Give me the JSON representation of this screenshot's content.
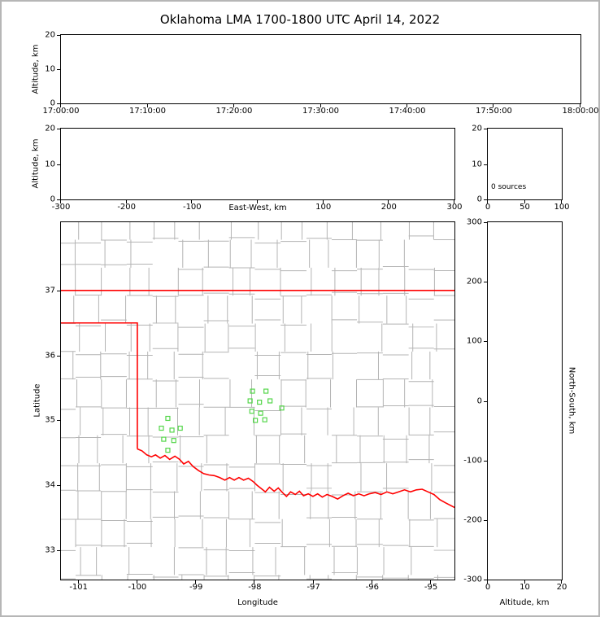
{
  "title": "Oklahoma LMA 1700-1800 UTC April 14, 2022",
  "colors": {
    "county_line": "#b4b4b4",
    "state_border": "#ff0000",
    "station_marker": "#54d64a",
    "axis": "#000000"
  },
  "panels": {
    "time_height": {
      "ylabel": "Altitude, km",
      "yticks": [
        [
          "0",
          0
        ],
        [
          "10",
          0.5
        ],
        [
          "20",
          1
        ]
      ],
      "xticks": [
        [
          "17:00:00",
          0
        ],
        [
          "17:10:00",
          0.1667
        ],
        [
          "17:20:00",
          0.3333
        ],
        [
          "17:30:00",
          0.5
        ],
        [
          "17:40:00",
          0.6667
        ],
        [
          "17:50:00",
          0.8333
        ],
        [
          "18:00:00",
          1
        ]
      ]
    },
    "ew_height": {
      "ylabel": "Altitude, km",
      "xlabel": "East-West, km",
      "yticks": [
        [
          "0",
          0
        ],
        [
          "10",
          0.5
        ],
        [
          "20",
          1
        ]
      ],
      "xticks": [
        [
          "-300",
          0
        ],
        [
          "-200",
          0.1667
        ],
        [
          "-100",
          0.3333
        ],
        [
          "",
          0.5
        ],
        [
          "100",
          0.6667
        ],
        [
          "200",
          0.8333
        ],
        [
          "300",
          1
        ]
      ]
    },
    "alt_hist": {
      "annotation": "0 sources",
      "yticks": [
        [
          "0",
          0
        ],
        [
          "10",
          0.5
        ],
        [
          "20",
          1
        ]
      ],
      "xticks": [
        [
          "0",
          0
        ],
        [
          "50",
          0.5
        ],
        [
          "100",
          1
        ]
      ]
    },
    "map": {
      "ylabel": "Latitude",
      "xlabel": "Longitude",
      "yticks": [
        [
          "33",
          0.0818
        ],
        [
          "34",
          0.2636
        ],
        [
          "35",
          0.4455
        ],
        [
          "36",
          0.6273
        ],
        [
          "37",
          0.8091
        ]
      ],
      "xticks": [
        [
          "-101",
          0.0448
        ],
        [
          "-100",
          0.194
        ],
        [
          "-99",
          0.3433
        ],
        [
          "-98",
          0.4925
        ],
        [
          "-97",
          0.6418
        ],
        [
          "-96",
          0.791
        ],
        [
          "-95",
          0.9403
        ]
      ]
    },
    "ns_height": {
      "ylabel": "North-South, km",
      "xlabel": "Altitude, km",
      "yticks": [
        [
          "-300",
          0
        ],
        [
          "-200",
          0.1667
        ],
        [
          "-100",
          0.3333
        ],
        [
          "0",
          0.5
        ],
        [
          "100",
          0.6667
        ],
        [
          "200",
          0.8333
        ],
        [
          "300",
          1
        ]
      ],
      "xticks": [
        [
          "0",
          0
        ],
        [
          "10",
          0.5
        ],
        [
          "20",
          1
        ]
      ]
    }
  },
  "chart_data": {
    "type": "scatter",
    "title": "Oklahoma LMA 1700-1800 UTC April 14, 2022",
    "source_count": 0,
    "panels": {
      "time_height": {
        "xlim": [
          "17:00:00",
          "18:00:00"
        ],
        "ylim": [
          0,
          20
        ],
        "xlabel": "",
        "ylabel": "Altitude, km",
        "points": []
      },
      "ew_height": {
        "xlim": [
          -300,
          300
        ],
        "ylim": [
          0,
          20
        ],
        "xlabel": "East-West, km",
        "ylabel": "Altitude, km",
        "points": []
      },
      "alt_histogram": {
        "xlim": [
          0,
          100
        ],
        "ylim": [
          0,
          20
        ],
        "annotation": "0 sources",
        "counts": []
      },
      "ns_height": {
        "xlim": [
          0,
          20
        ],
        "ylim": [
          -300,
          300
        ],
        "xlabel": "Altitude, km",
        "ylabel": "North-South, km",
        "points": []
      }
    },
    "map": {
      "lon_range": [
        -101.3,
        -94.6
      ],
      "lat_range": [
        32.55,
        38.05
      ],
      "xlabel": "Longitude",
      "ylabel": "Latitude",
      "stations_lonlat": [
        [
          -98.04,
          35.45
        ],
        [
          -97.81,
          35.45
        ],
        [
          -98.08,
          35.3
        ],
        [
          -97.92,
          35.28
        ],
        [
          -97.74,
          35.3
        ],
        [
          -98.05,
          35.14
        ],
        [
          -97.9,
          35.11
        ],
        [
          -97.54,
          35.19
        ],
        [
          -97.99,
          35.0
        ],
        [
          -97.83,
          35.01
        ],
        [
          -99.48,
          35.03
        ],
        [
          -99.59,
          34.88
        ],
        [
          -99.41,
          34.85
        ],
        [
          -99.27,
          34.88
        ],
        [
          -99.55,
          34.71
        ],
        [
          -99.38,
          34.69
        ],
        [
          -99.48,
          34.54
        ]
      ],
      "state_border": {
        "north_border_lat": 37.0,
        "panhandle_south_lat": 36.5,
        "texas_east_lon": -100.0,
        "red_river_lonlat": [
          [
            -100.0,
            34.56
          ],
          [
            -99.92,
            34.53
          ],
          [
            -99.84,
            34.47
          ],
          [
            -99.76,
            34.44
          ],
          [
            -99.69,
            34.47
          ],
          [
            -99.61,
            34.42
          ],
          [
            -99.53,
            34.46
          ],
          [
            -99.45,
            34.4
          ],
          [
            -99.36,
            34.45
          ],
          [
            -99.28,
            34.4
          ],
          [
            -99.21,
            34.33
          ],
          [
            -99.13,
            34.37
          ],
          [
            -99.05,
            34.29
          ],
          [
            -98.96,
            34.23
          ],
          [
            -98.87,
            34.18
          ],
          [
            -98.78,
            34.16
          ],
          [
            -98.69,
            34.15
          ],
          [
            -98.6,
            34.12
          ],
          [
            -98.51,
            34.08
          ],
          [
            -98.43,
            34.12
          ],
          [
            -98.35,
            34.08
          ],
          [
            -98.27,
            34.12
          ],
          [
            -98.19,
            34.08
          ],
          [
            -98.11,
            34.11
          ],
          [
            -98.03,
            34.06
          ],
          [
            -97.96,
            34.0
          ],
          [
            -97.89,
            33.95
          ],
          [
            -97.82,
            33.9
          ],
          [
            -97.75,
            33.97
          ],
          [
            -97.67,
            33.91
          ],
          [
            -97.6,
            33.96
          ],
          [
            -97.53,
            33.89
          ],
          [
            -97.46,
            33.83
          ],
          [
            -97.39,
            33.9
          ],
          [
            -97.31,
            33.86
          ],
          [
            -97.24,
            33.91
          ],
          [
            -97.17,
            33.84
          ],
          [
            -97.09,
            33.87
          ],
          [
            -97.01,
            33.83
          ],
          [
            -96.93,
            33.87
          ],
          [
            -96.85,
            33.82
          ],
          [
            -96.77,
            33.86
          ],
          [
            -96.68,
            33.83
          ],
          [
            -96.59,
            33.79
          ],
          [
            -96.5,
            33.84
          ],
          [
            -96.41,
            33.88
          ],
          [
            -96.32,
            33.84
          ],
          [
            -96.23,
            33.87
          ],
          [
            -96.14,
            33.84
          ],
          [
            -96.05,
            33.87
          ],
          [
            -95.95,
            33.89
          ],
          [
            -95.85,
            33.86
          ],
          [
            -95.75,
            33.9
          ],
          [
            -95.65,
            33.87
          ],
          [
            -95.55,
            33.9
          ],
          [
            -95.45,
            33.93
          ],
          [
            -95.35,
            33.9
          ],
          [
            -95.25,
            33.93
          ],
          [
            -95.15,
            33.94
          ],
          [
            -95.05,
            33.9
          ],
          [
            -94.95,
            33.86
          ],
          [
            -94.85,
            33.78
          ],
          [
            -94.75,
            33.73
          ],
          [
            -94.6,
            33.66
          ]
        ]
      },
      "county_grid_lons": [
        -101.05,
        -100.62,
        -100.18,
        -99.74,
        -99.3,
        -98.87,
        -98.44,
        -98.0,
        -97.56,
        -97.12,
        -96.69,
        -96.26,
        -95.82,
        -95.38,
        -94.95
      ],
      "county_grid_lats": [
        37.78,
        37.35,
        36.92,
        36.49,
        36.06,
        35.63,
        35.2,
        34.77,
        34.34,
        33.91,
        33.48,
        33.05,
        32.62
      ]
    }
  }
}
